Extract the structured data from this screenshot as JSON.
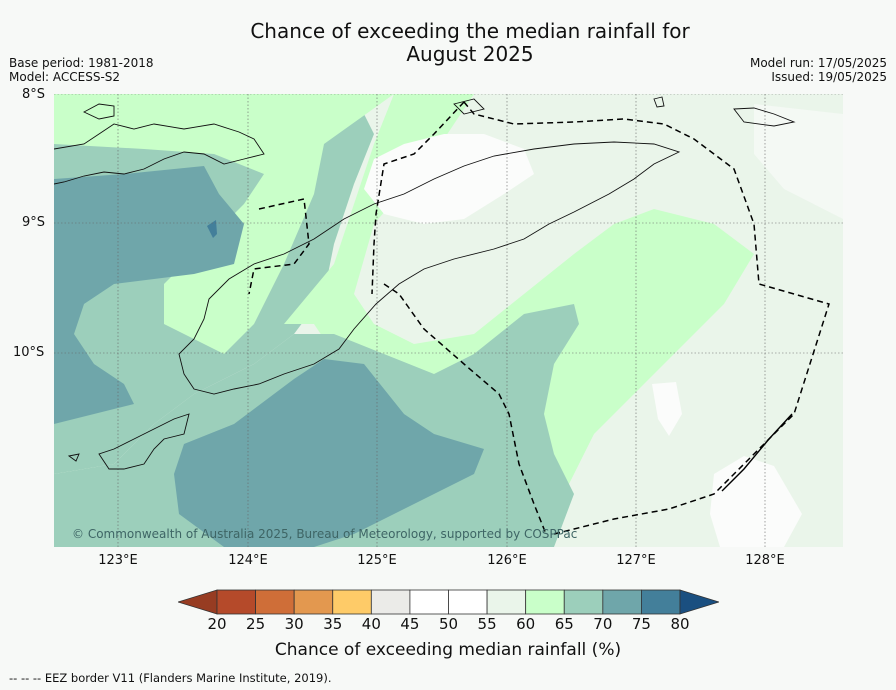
{
  "title_line1": "Chance of exceeding the median rainfall for",
  "title_line2": "August 2025",
  "base_period": "Base period: 1981-2018",
  "model": "Model: ACCESS-S2",
  "model_run": "Model run: 17/05/2025",
  "issued": "Issued: 19/05/2025",
  "lat_labels": [
    "8°S",
    "9°S",
    "10°S"
  ],
  "lon_labels": [
    "123°E",
    "124°E",
    "125°E",
    "126°E",
    "127°E",
    "128°E"
  ],
  "copyright": "© Commonwealth of Australia 2025, Bureau of Meteorology, supported by COSPPac",
  "colorbar": {
    "title": "Chance of exceeding median rainfall (%)",
    "ticks": [
      "20",
      "25",
      "30",
      "35",
      "40",
      "45",
      "50",
      "55",
      "60",
      "65",
      "70",
      "75",
      "80"
    ],
    "colors": [
      "#973c22",
      "#b54a2a",
      "#cf6e38",
      "#e3984f",
      "#fecb68",
      "#ebebe8",
      "#ffffff",
      "#ffffff",
      "#eaf5ea",
      "#c9ffc9",
      "#9ccfbb",
      "#6fa6aa",
      "#437f9a",
      "#1a4f80"
    ]
  },
  "footer": "--  --  -- EEZ border V11 (Flanders Marine Institute, 2019).",
  "colors": {
    "dark_teal": "#6fa6aa",
    "mid_teal": "#9ccfbb",
    "light_green": "#c9ffc9",
    "pale_green": "#eaf5ea",
    "white": "#fbfcfb",
    "blue_patch": "#437f9a"
  }
}
